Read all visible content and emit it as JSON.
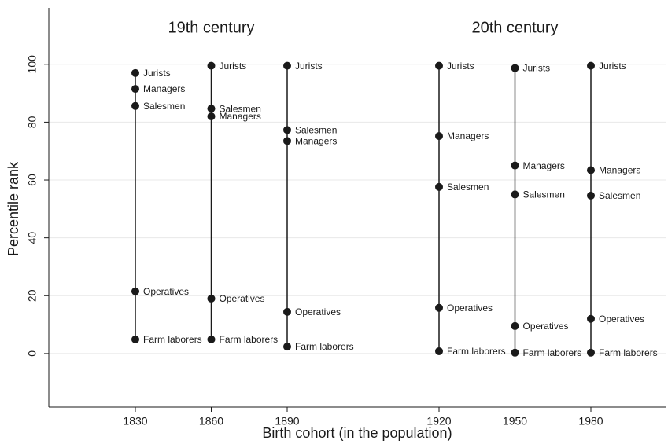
{
  "chart_data": {
    "type": "dot-range",
    "x_label": "Birth cohort (in the population)",
    "y_label": "Percentile rank",
    "annotations": [
      "19th century",
      "20th century"
    ],
    "categories": [
      "1830",
      "1860",
      "1890",
      null,
      "1920",
      "1950",
      "1980"
    ],
    "series": [
      {
        "name": "Jurists",
        "color": "#1a1a1a",
        "values": [
          97,
          99.5,
          99.5,
          null,
          99.5,
          98.7,
          99.5
        ]
      },
      {
        "name": "Managers",
        "color": "#1a1a1a",
        "values": [
          91.5,
          82,
          73.5,
          null,
          75.2,
          65,
          63.4
        ]
      },
      {
        "name": "Salesmen",
        "color": "#1a1a1a",
        "values": [
          85.6,
          84.7,
          77.3,
          null,
          57.6,
          55,
          54.6
        ]
      },
      {
        "name": "Operatives",
        "color": "#1a1a1a",
        "values": [
          21.5,
          19,
          14.4,
          null,
          15.8,
          9.5,
          12
        ]
      },
      {
        "name": "Farm laborers",
        "color": "#1a1a1a",
        "values": [
          4.9,
          4.9,
          2.4,
          null,
          0.8,
          0.3,
          0.3
        ]
      }
    ],
    "ylim": [
      -18.5,
      119.5
    ],
    "yticks": [
      0,
      20,
      40,
      60,
      80,
      100
    ],
    "grid": true
  }
}
